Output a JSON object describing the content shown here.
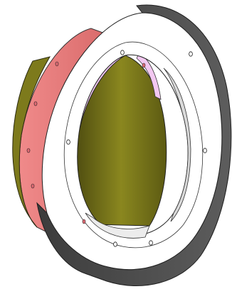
{
  "scene": {
    "background": "#ffffff",
    "colors": {
      "outer_face": "#ffffff",
      "outer_edge": "#4a4a4a",
      "outer_edge_highlight": "#6a6a6a",
      "inner_bore": "#d9d9d9",
      "pink_flange": "#f2c8f0",
      "red_shell": "#ee7f7f",
      "red_shell_shade": "#d96b6b",
      "olive_liner": "#7d7a1c",
      "olive_liner_dark": "#4f4d10",
      "olive_liner_light": "#9c9a2c",
      "bolt_hole_outer": "#ffffff",
      "bolt_hole_pink": "#e06a74",
      "outline": "#222222"
    }
  }
}
